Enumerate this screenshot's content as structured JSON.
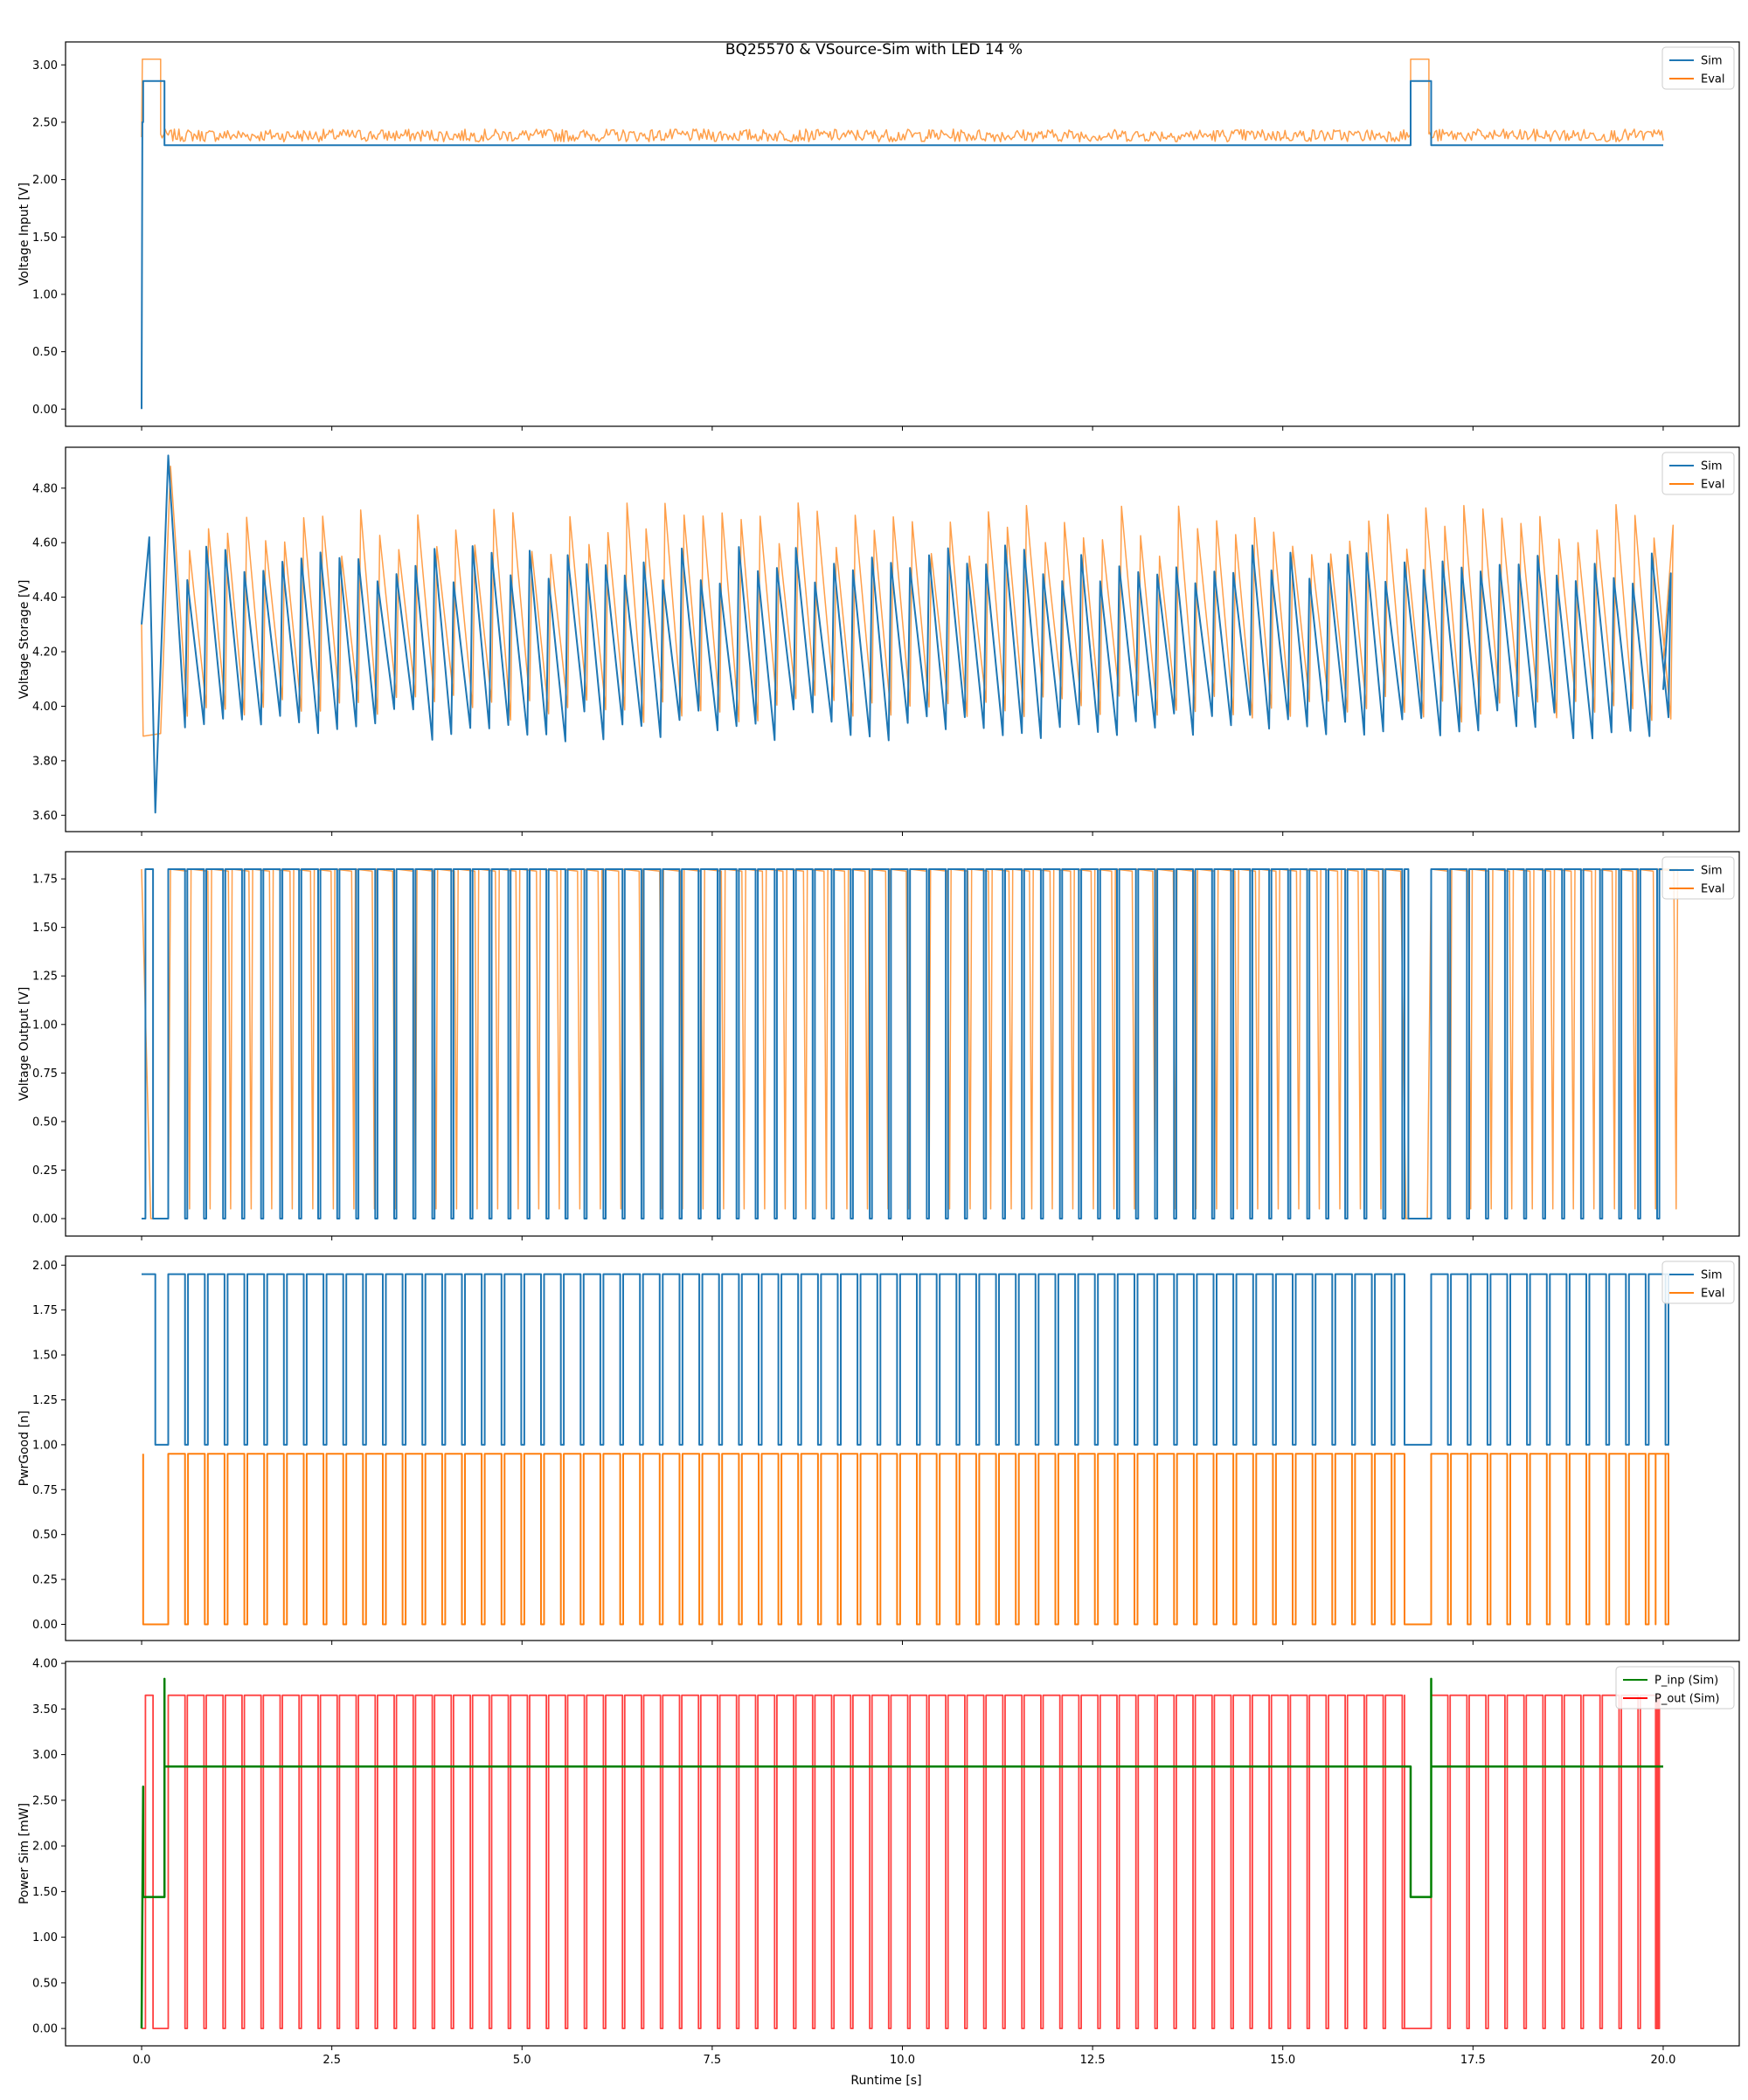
{
  "title": "BQ25570 & VSource-Sim with LED 14 %",
  "xlabel": "Runtime [s]",
  "chart_data": [
    {
      "type": "line",
      "ylabel": "Voltage Input [V]",
      "xlim": [
        -1.0,
        21.0
      ],
      "ylim": [
        -0.15,
        3.2
      ],
      "xticks": [
        0.0,
        2.5,
        5.0,
        7.5,
        10.0,
        12.5,
        15.0,
        17.5,
        20.0
      ],
      "yticks": [
        0.0,
        0.5,
        1.0,
        1.5,
        2.0,
        2.5,
        3.0
      ],
      "series": [
        {
          "name": "Sim",
          "color": "#1f77b4",
          "x": [
            0,
            0.01,
            0.02,
            0.02,
            0.3,
            0.3,
            16.68,
            16.68,
            16.95,
            16.95,
            20
          ],
          "y": [
            0.0,
            2.5,
            2.5,
            2.86,
            2.86,
            2.3,
            2.3,
            2.86,
            2.86,
            2.3,
            2.3
          ]
        },
        {
          "name": "Eval",
          "color": "#ff7f0e",
          "x": [
            0,
            0.01,
            0.01,
            0.25,
            0.25,
            16.68,
            16.68,
            16.92,
            16.92,
            20
          ],
          "y": [
            2.37,
            2.37,
            3.05,
            3.05,
            2.38,
            2.38,
            3.05,
            3.05,
            2.38,
            2.38
          ],
          "band": [
            2.33,
            2.44
          ]
        }
      ],
      "legend": "top-right"
    },
    {
      "type": "line",
      "ylabel": "Voltage Storage [V]",
      "xlim": [
        -1.0,
        21.0
      ],
      "ylim": [
        3.54,
        4.95
      ],
      "xticks": [
        0.0,
        2.5,
        5.0,
        7.5,
        10.0,
        12.5,
        15.0,
        17.5,
        20.0
      ],
      "yticks": [
        3.6,
        3.8,
        4.0,
        4.2,
        4.4,
        4.6,
        4.8
      ],
      "series": [
        {
          "name": "Sim",
          "color": "#1f77b4",
          "x": [
            0,
            0.1,
            0.18,
            0.35,
            0.75,
            0.8,
            1.25,
            1.3,
            20
          ],
          "y": [
            4.3,
            4.62,
            3.61,
            4.92,
            3.92,
            4.48,
            3.88,
            4.48,
            4.06
          ],
          "saw_period": 0.25,
          "saw_range": [
            3.88,
            4.58
          ]
        },
        {
          "name": "Eval",
          "color": "#ff7f0e",
          "x": [
            0,
            0.02,
            0.25,
            0.38,
            0.65,
            16.68,
            16.92,
            20
          ],
          "y": [
            4.3,
            3.89,
            3.9,
            4.88,
            4.0,
            3.61,
            3.63,
            4.17
          ],
          "saw_period": 0.25,
          "saw_range": [
            3.94,
            4.76
          ]
        }
      ],
      "legend": "top-right"
    },
    {
      "type": "line",
      "ylabel": "Voltage Output [V]",
      "xlim": [
        -1.0,
        21.0
      ],
      "ylim": [
        -0.09,
        1.89
      ],
      "xticks": [
        0.0,
        2.5,
        5.0,
        7.5,
        10.0,
        12.5,
        15.0,
        17.5,
        20.0
      ],
      "yticks": [
        0.0,
        0.25,
        0.5,
        0.75,
        1.0,
        1.25,
        1.5,
        1.75
      ],
      "series": [
        {
          "name": "Sim",
          "color": "#1f77b4",
          "levels": [
            0.0,
            1.8
          ],
          "period": 0.25
        },
        {
          "name": "Eval",
          "color": "#ff7f0e",
          "levels": [
            0.0,
            1.8
          ],
          "period": 0.25
        }
      ],
      "legend": "top-right"
    },
    {
      "type": "line",
      "ylabel": "PwrGood [n]",
      "xlim": [
        -1.0,
        21.0
      ],
      "ylim": [
        -0.09,
        2.05
      ],
      "xticks": [
        0.0,
        2.5,
        5.0,
        7.5,
        10.0,
        12.5,
        15.0,
        17.5,
        20.0
      ],
      "yticks": [
        0.0,
        0.25,
        0.5,
        0.75,
        1.0,
        1.25,
        1.5,
        1.75,
        2.0
      ],
      "series": [
        {
          "name": "Sim",
          "color": "#1f77b4",
          "levels": [
            1.0,
            1.95
          ],
          "period": 0.25
        },
        {
          "name": "Eval",
          "color": "#ff7f0e",
          "levels": [
            0.0,
            0.95
          ],
          "period": 0.25
        }
      ],
      "legend": "top-right"
    },
    {
      "type": "line",
      "ylabel": "Power Sim [mW]",
      "xlim": [
        -1.0,
        21.0
      ],
      "ylim": [
        -0.19,
        4.02
      ],
      "xticks": [
        0.0,
        2.5,
        5.0,
        7.5,
        10.0,
        12.5,
        15.0,
        17.5,
        20.0
      ],
      "xticklabels": [
        "0.0",
        "2.5",
        "5.0",
        "7.5",
        "10.0",
        "12.5",
        "15.0",
        "17.5",
        "20.0"
      ],
      "yticks": [
        0.0,
        0.5,
        1.0,
        1.5,
        2.0,
        2.5,
        3.0,
        3.5,
        4.0
      ],
      "series": [
        {
          "name": "P_inp (Sim)",
          "color": "#008000",
          "x": [
            0,
            0.02,
            0.02,
            0.3,
            0.3,
            0.3,
            16.68,
            16.68,
            16.95,
            16.95,
            16.95,
            20
          ],
          "y": [
            0.0,
            2.65,
            1.44,
            1.44,
            3.83,
            2.87,
            2.87,
            1.44,
            1.44,
            3.83,
            2.87,
            2.87
          ]
        },
        {
          "name": "P_out (Sim)",
          "color": "#ff0000",
          "levels": [
            0.0,
            3.65
          ],
          "period": 0.25
        }
      ],
      "legend": "top-right"
    }
  ]
}
